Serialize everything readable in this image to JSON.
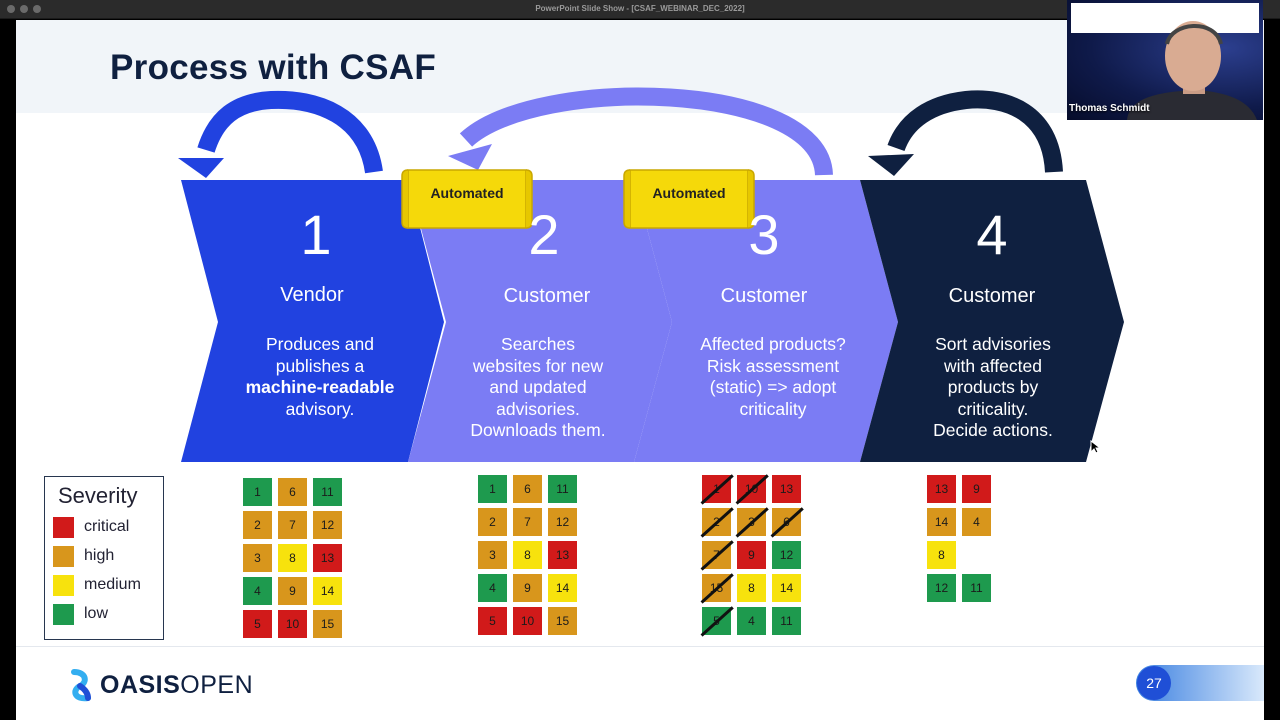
{
  "window": {
    "title": "PowerPoint Slide Show - [CSAF_WEBINAR_DEC_2022]"
  },
  "slide": {
    "title": "Process with CSAF",
    "page_number": "27",
    "logo_bold": "OASIS",
    "logo_light": "OPEN"
  },
  "webcam": {
    "name": "Thomas Schmidt"
  },
  "steps": [
    {
      "number": "1",
      "role": "Vendor",
      "lines": [
        "Produces and",
        "publishes a",
        "machine-readable",
        "advisory."
      ],
      "color": "#2142e0"
    },
    {
      "number": "2",
      "role": "Customer",
      "lines": [
        "Searches",
        "websites for new",
        "and updated",
        "advisories.",
        "Downloads them."
      ],
      "color": "#7b7cf4"
    },
    {
      "number": "3",
      "role": "Customer",
      "lines": [
        "Affected products?",
        "Risk assessment",
        "(static) => adopt",
        "criticality"
      ],
      "color": "#7b7cf4"
    },
    {
      "number": "4",
      "role": "Customer",
      "lines": [
        "Sort advisories",
        "with affected",
        "products by",
        "criticality.",
        "Decide actions."
      ],
      "color": "#0f2040"
    }
  ],
  "tags": [
    "Automated",
    "Automated"
  ],
  "severity": {
    "title": "Severity",
    "levels": [
      {
        "label": "critical",
        "color": "#d11a1a"
      },
      {
        "label": "high",
        "color": "#d8961c"
      },
      {
        "label": "medium",
        "color": "#f7e20d"
      },
      {
        "label": "low",
        "color": "#1e9a4e"
      }
    ]
  },
  "grids": [
    {
      "rows": [
        [
          [
            "1",
            "low"
          ],
          [
            "6",
            "high"
          ],
          [
            "11",
            "low"
          ]
        ],
        [
          [
            "2",
            "high"
          ],
          [
            "7",
            "high"
          ],
          [
            "12",
            "high"
          ]
        ],
        [
          [
            "3",
            "high"
          ],
          [
            "8",
            "medium"
          ],
          [
            "13",
            "critical"
          ]
        ],
        [
          [
            "4",
            "low"
          ],
          [
            "9",
            "high"
          ],
          [
            "14",
            "medium"
          ]
        ],
        [
          [
            "5",
            "critical"
          ],
          [
            "10",
            "critical"
          ],
          [
            "15",
            "high"
          ]
        ]
      ]
    },
    {
      "rows": [
        [
          [
            "1",
            "low"
          ],
          [
            "6",
            "high"
          ],
          [
            "11",
            "low"
          ]
        ],
        [
          [
            "2",
            "high"
          ],
          [
            "7",
            "high"
          ],
          [
            "12",
            "high"
          ]
        ],
        [
          [
            "3",
            "high"
          ],
          [
            "8",
            "medium"
          ],
          [
            "13",
            "critical"
          ]
        ],
        [
          [
            "4",
            "low"
          ],
          [
            "9",
            "high"
          ],
          [
            "14",
            "medium"
          ]
        ],
        [
          [
            "5",
            "critical"
          ],
          [
            "10",
            "critical"
          ],
          [
            "15",
            "high"
          ]
        ]
      ]
    },
    {
      "rows": [
        [
          [
            "1",
            "critical",
            1
          ],
          [
            "10",
            "critical",
            1
          ],
          [
            "13",
            "critical",
            0
          ]
        ],
        [
          [
            "2",
            "high",
            1
          ],
          [
            "3",
            "high",
            1
          ],
          [
            "6",
            "high",
            1
          ]
        ],
        [
          [
            "7",
            "high",
            1
          ],
          [
            "9",
            "critical",
            0
          ],
          [
            "12",
            "low",
            0
          ]
        ],
        [
          [
            "15",
            "high",
            1
          ],
          [
            "8",
            "medium",
            0
          ],
          [
            "14",
            "medium",
            0
          ]
        ],
        [
          [
            "5",
            "low",
            1
          ],
          [
            "4",
            "low",
            0
          ],
          [
            "11",
            "low",
            0
          ]
        ]
      ]
    },
    {
      "rows": [
        [
          [
            "13",
            "critical"
          ],
          [
            "9",
            "critical"
          ]
        ],
        [
          [
            "14",
            "high"
          ],
          [
            "4",
            "high"
          ]
        ],
        [
          [
            "8",
            "medium"
          ]
        ],
        [
          [
            "12",
            "low"
          ],
          [
            "11",
            "low"
          ]
        ]
      ]
    }
  ]
}
